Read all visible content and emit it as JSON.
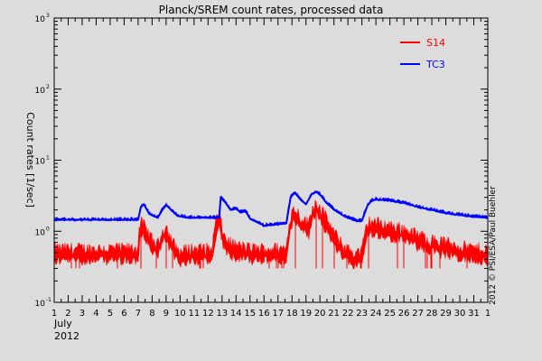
{
  "chart_data": {
    "type": "line",
    "title": "Planck/SREM count rates, processed data",
    "ylabel": "Count rates [1/sec]",
    "xlabel_month": "July",
    "xlabel_year": "2012",
    "credit": "2012 © PSI/ESA/Paul Buehler",
    "y_scale": "log",
    "ylim": [
      0.1,
      1000
    ],
    "xlim": [
      1,
      32
    ],
    "y_tick_labels": [
      {
        "value": 0.1,
        "base": "10",
        "exp": "-1"
      },
      {
        "value": 1,
        "base": "10",
        "exp": "0"
      },
      {
        "value": 10,
        "base": "10",
        "exp": "1"
      },
      {
        "value": 100,
        "base": "10",
        "exp": "2"
      },
      {
        "value": 1000,
        "base": "10",
        "exp": "3"
      }
    ],
    "x_tick_labels": [
      "1",
      "2",
      "3",
      "4",
      "5",
      "6",
      "7",
      "8",
      "9",
      "10",
      "11",
      "12",
      "13",
      "14",
      "15",
      "16",
      "17",
      "18",
      "19",
      "20",
      "21",
      "22",
      "23",
      "24",
      "25",
      "26",
      "27",
      "28",
      "29",
      "30",
      "31",
      "1"
    ],
    "legend_position": "top-right",
    "series": [
      {
        "name": "S14",
        "color": "#ff0000",
        "x": [
          1,
          7.0,
          7.1,
          7.3,
          7.6,
          8.0,
          8.4,
          8.8,
          9.0,
          9.2,
          9.6,
          10.0,
          10.6,
          11.4,
          12.3,
          12.8,
          12.9,
          13.1,
          13.5,
          14.0,
          15.0,
          16.0,
          17.6,
          17.9,
          18.2,
          18.5,
          18.8,
          19.2,
          19.5,
          19.8,
          20.1,
          20.5,
          21.0,
          21.6,
          22.3,
          23.0,
          23.4,
          23.6,
          24.0,
          25.0,
          26.0,
          27.0,
          28.0,
          29.0,
          30.0,
          31.0,
          32.0
        ],
        "y": [
          0.45,
          0.45,
          1.0,
          1.05,
          0.8,
          0.6,
          0.5,
          0.85,
          0.95,
          0.7,
          0.5,
          0.4,
          0.45,
          0.45,
          0.45,
          1.6,
          1.05,
          0.7,
          0.55,
          0.5,
          0.45,
          0.45,
          0.45,
          1.3,
          1.7,
          1.35,
          1.15,
          1.0,
          1.8,
          2.0,
          1.6,
          1.15,
          0.75,
          0.5,
          0.4,
          0.4,
          1.0,
          1.1,
          1.05,
          0.95,
          0.85,
          0.7,
          0.6,
          0.55,
          0.5,
          0.45,
          0.45
        ]
      },
      {
        "name": "TC3",
        "color": "#0000ff",
        "x": [
          1,
          7.0,
          7.2,
          7.4,
          7.8,
          8.4,
          8.8,
          9.0,
          9.3,
          9.8,
          10.6,
          12.0,
          12.8,
          12.9,
          13.2,
          13.6,
          14.0,
          14.3,
          14.7,
          15.0,
          16.0,
          17.0,
          17.6,
          17.9,
          18.2,
          18.6,
          19.0,
          19.4,
          19.7,
          20.0,
          20.4,
          21.0,
          21.8,
          22.6,
          23.0,
          23.4,
          23.7,
          24.0,
          25.0,
          26.0,
          27.0,
          28.0,
          29.0,
          30.0,
          31.0,
          32.0
        ],
        "y": [
          1.45,
          1.45,
          2.2,
          2.4,
          1.75,
          1.55,
          2.1,
          2.35,
          2.05,
          1.65,
          1.55,
          1.55,
          1.55,
          2.95,
          2.6,
          2.0,
          2.1,
          1.85,
          1.9,
          1.5,
          1.2,
          1.25,
          1.3,
          3.0,
          3.5,
          2.8,
          2.4,
          3.3,
          3.6,
          3.3,
          2.6,
          2.0,
          1.6,
          1.4,
          1.4,
          2.3,
          2.7,
          2.8,
          2.7,
          2.5,
          2.2,
          2.0,
          1.8,
          1.7,
          1.6,
          1.55
        ]
      }
    ]
  }
}
